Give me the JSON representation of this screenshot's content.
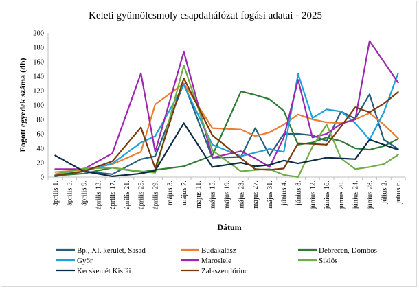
{
  "chart_data": {
    "type": "line",
    "title": "Keleti gyümölcsmoly csapdahálózat fogási adatai - 2025",
    "xlabel": "Dátum",
    "ylabel": "Fogott egyedek száma (db)",
    "ylim": [
      0,
      200
    ],
    "yticks": [
      0,
      20,
      40,
      60,
      80,
      100,
      120,
      140,
      160,
      180,
      200
    ],
    "grid": false,
    "legend_position": "bottom",
    "categories": [
      "április 1.",
      "április 5.",
      "április 9.",
      "április 13.",
      "április 17.",
      "április 21.",
      "április 25.",
      "április 29.",
      "május 3.",
      "május 7.",
      "május 11.",
      "május 15.",
      "május 19.",
      "május 23.",
      "május 27.",
      "május 31.",
      "június 4.",
      "június 8.",
      "június 12.",
      "június 16.",
      "június 20.",
      "június 24.",
      "június 28.",
      "július 2.",
      "július 6."
    ],
    "xticks": [
      "április 1.",
      "április 5.",
      "április 9.",
      "április 13.",
      "április 17.",
      "április 21.",
      "április 25.",
      "április 29.",
      "május 3.",
      "május 7.",
      "május 11.",
      "május 15.",
      "május 19.",
      "május 23.",
      "május 27.",
      "május 31.",
      "június 4.",
      "június 8.",
      "június 12.",
      "június 16.",
      "június 20.",
      "június 24.",
      "június 28.",
      "július 2.",
      "július 6."
    ],
    "series": [
      {
        "name": "Bp., XI. kerület, Sasad",
        "color": "#255e7e",
        "x": [
          0,
          2,
          4,
          6,
          7,
          9,
          11,
          13,
          14,
          15,
          16,
          17,
          18,
          19,
          20,
          21,
          22,
          23,
          24
        ],
        "values": [
          1,
          8,
          4,
          25,
          29,
          130,
          27,
          28,
          68,
          30,
          60,
          60,
          58,
          50,
          91,
          81,
          115,
          52,
          39
        ]
      },
      {
        "name": "Budakalász",
        "color": "#ed7d31",
        "x": [
          0,
          2,
          4,
          6,
          7,
          9,
          11,
          13,
          14,
          15,
          16,
          17,
          18,
          19,
          20,
          21,
          22,
          23,
          24
        ],
        "values": [
          7,
          10,
          18,
          35,
          101,
          130,
          68,
          66,
          57,
          62,
          73,
          87,
          80,
          76,
          75,
          80,
          89,
          73,
          54
        ]
      },
      {
        "name": "Debrecen, Dombos",
        "color": "#2e7d32",
        "x": [
          0,
          2,
          4,
          6,
          7,
          9,
          11,
          13,
          14,
          15,
          16,
          17,
          18,
          19,
          20,
          21,
          22,
          23,
          24
        ],
        "values": [
          2,
          5,
          13,
          7,
          10,
          15,
          30,
          119,
          114,
          108,
          92,
          45,
          48,
          55,
          50,
          40,
          38,
          43,
          53
        ]
      },
      {
        "name": "Győr",
        "color": "#1ea0d8",
        "x": [
          0,
          2,
          4,
          6,
          7,
          9,
          11,
          13,
          14,
          15,
          16,
          17,
          18,
          19,
          20,
          21,
          22,
          23,
          24
        ],
        "values": [
          3,
          8,
          19,
          48,
          57,
          128,
          45,
          29,
          34,
          39,
          35,
          143,
          82,
          94,
          91,
          75,
          52,
          90,
          144
        ]
      },
      {
        "name": "Maroslele",
        "color": "#9c27b0",
        "x": [
          0,
          2,
          4,
          6,
          7,
          9,
          11,
          13,
          14,
          15,
          16,
          17,
          18,
          19,
          20,
          21,
          22,
          23,
          24
        ],
        "values": [
          11,
          11,
          33,
          144,
          35,
          174,
          27,
          36,
          26,
          14,
          55,
          135,
          55,
          60,
          74,
          80,
          189,
          160,
          131
        ]
      },
      {
        "name": "Siklós",
        "color": "#70ad47",
        "x": [
          0,
          2,
          4,
          6,
          7,
          9,
          11,
          13,
          14,
          15,
          16,
          17,
          18,
          19,
          20,
          21,
          22,
          23,
          24
        ],
        "values": [
          4,
          12,
          13,
          8,
          6,
          155,
          37,
          8,
          10,
          11,
          3,
          0,
          42,
          73,
          26,
          11,
          14,
          18,
          31
        ]
      },
      {
        "name": "Kecskemét Kisfái",
        "color": "#0d2b45",
        "x": [
          0,
          2,
          4,
          6,
          7,
          9,
          11,
          13,
          14,
          15,
          16,
          17,
          18,
          19,
          20,
          21,
          22,
          23,
          24
        ],
        "values": [
          30,
          8,
          1,
          5,
          9,
          75,
          14,
          20,
          15,
          17,
          23,
          19,
          23,
          27,
          26,
          25,
          52,
          45,
          38
        ]
      },
      {
        "name": "Zalaszentlőrinc",
        "color": "#7b3a0a",
        "x": [
          0,
          2,
          4,
          6,
          7,
          9,
          11,
          13,
          14,
          15,
          16,
          17,
          18,
          19,
          20,
          21,
          22,
          23,
          24
        ],
        "values": [
          2,
          8,
          22,
          69,
          12,
          137,
          58,
          26,
          11,
          10,
          12,
          47,
          46,
          45,
          70,
          97,
          90,
          102,
          118
        ]
      }
    ]
  }
}
